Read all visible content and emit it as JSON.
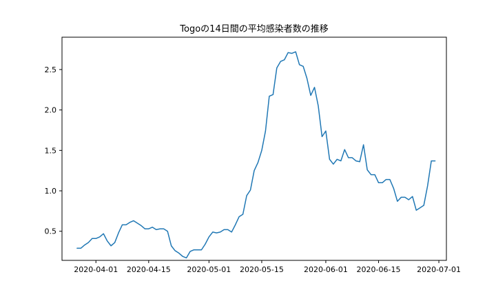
{
  "chart_data": {
    "type": "line",
    "title": "Togoの14日間の平均感染者数の推移",
    "xlabel": "",
    "ylabel": "",
    "x_ticks": [
      "2020-04-01",
      "2020-04-15",
      "2020-05-01",
      "2020-05-15",
      "2020-06-01",
      "2020-06-15",
      "2020-07-01"
    ],
    "y_ticks": [
      "0.5",
      "1.0",
      "1.5",
      "2.0",
      "2.5"
    ],
    "x_range": [
      "2020-03-23",
      "2020-07-03"
    ],
    "ylim": [
      0.14,
      2.9
    ],
    "grid": false,
    "series": [
      {
        "name": "",
        "color": "#1f77b4",
        "x": [
          "2020-03-27",
          "2020-03-28",
          "2020-03-29",
          "2020-03-30",
          "2020-03-31",
          "2020-04-01",
          "2020-04-02",
          "2020-04-03",
          "2020-04-04",
          "2020-04-05",
          "2020-04-06",
          "2020-04-07",
          "2020-04-08",
          "2020-04-09",
          "2020-04-10",
          "2020-04-11",
          "2020-04-12",
          "2020-04-13",
          "2020-04-14",
          "2020-04-15",
          "2020-04-16",
          "2020-04-17",
          "2020-04-18",
          "2020-04-19",
          "2020-04-20",
          "2020-04-21",
          "2020-04-22",
          "2020-04-23",
          "2020-04-24",
          "2020-04-25",
          "2020-04-26",
          "2020-04-27",
          "2020-04-28",
          "2020-04-29",
          "2020-04-30",
          "2020-05-01",
          "2020-05-02",
          "2020-05-03",
          "2020-05-04",
          "2020-05-05",
          "2020-05-06",
          "2020-05-07",
          "2020-05-08",
          "2020-05-09",
          "2020-05-10",
          "2020-05-11",
          "2020-05-12",
          "2020-05-13",
          "2020-05-14",
          "2020-05-15",
          "2020-05-16",
          "2020-05-17",
          "2020-05-18",
          "2020-05-19",
          "2020-05-20",
          "2020-05-21",
          "2020-05-22",
          "2020-05-23",
          "2020-05-24",
          "2020-05-25",
          "2020-05-26",
          "2020-05-27",
          "2020-05-28",
          "2020-05-29",
          "2020-05-30",
          "2020-05-31",
          "2020-06-01",
          "2020-06-02",
          "2020-06-03",
          "2020-06-04",
          "2020-06-05",
          "2020-06-06",
          "2020-06-07",
          "2020-06-08",
          "2020-06-09",
          "2020-06-10",
          "2020-06-11",
          "2020-06-12",
          "2020-06-13",
          "2020-06-14",
          "2020-06-15",
          "2020-06-16",
          "2020-06-17",
          "2020-06-18",
          "2020-06-19",
          "2020-06-20",
          "2020-06-21",
          "2020-06-22",
          "2020-06-23",
          "2020-06-24",
          "2020-06-25",
          "2020-06-26",
          "2020-06-27",
          "2020-06-28",
          "2020-06-29",
          "2020-06-30"
        ],
        "values": [
          0.29,
          0.29,
          0.33,
          0.36,
          0.41,
          0.41,
          0.43,
          0.47,
          0.38,
          0.32,
          0.36,
          0.48,
          0.58,
          0.58,
          0.61,
          0.63,
          0.6,
          0.57,
          0.53,
          0.53,
          0.55,
          0.52,
          0.53,
          0.53,
          0.5,
          0.32,
          0.26,
          0.23,
          0.19,
          0.17,
          0.25,
          0.27,
          0.27,
          0.27,
          0.34,
          0.43,
          0.49,
          0.48,
          0.49,
          0.52,
          0.52,
          0.49,
          0.58,
          0.68,
          0.71,
          0.94,
          1.01,
          1.25,
          1.35,
          1.5,
          1.74,
          2.17,
          2.19,
          2.52,
          2.6,
          2.62,
          2.71,
          2.7,
          2.72,
          2.56,
          2.54,
          2.39,
          2.18,
          2.28,
          2.05,
          1.67,
          1.74,
          1.39,
          1.33,
          1.39,
          1.37,
          1.51,
          1.41,
          1.41,
          1.37,
          1.36,
          1.57,
          1.26,
          1.2,
          1.2,
          1.1,
          1.1,
          1.14,
          1.14,
          1.03,
          0.87,
          0.92,
          0.92,
          0.89,
          0.93,
          0.76,
          0.79,
          0.82,
          1.06,
          1.37,
          1.37
        ]
      }
    ]
  }
}
